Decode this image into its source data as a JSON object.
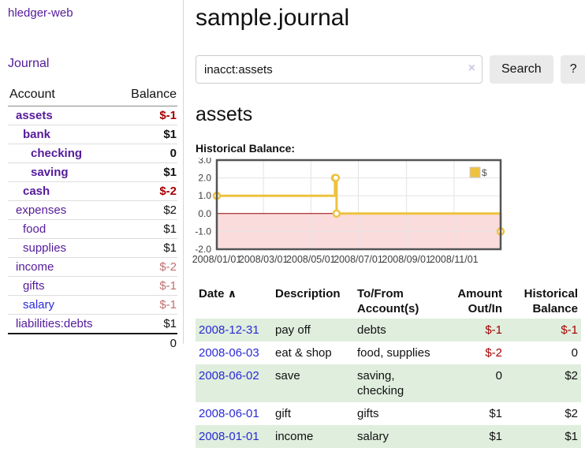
{
  "app": {
    "brand": "hledger-web"
  },
  "sidebar": {
    "nav": {
      "journal_label": "Journal"
    },
    "accounts_table": {
      "headers": {
        "account": "Account",
        "balance": "Balance"
      },
      "rows": [
        {
          "account": "assets",
          "balance": "$-1",
          "link_class": "depth0 emph",
          "balance_class": "emph neg"
        },
        {
          "account": "bank",
          "balance": "$1",
          "link_class": "depth1 emph",
          "balance_class": "emph"
        },
        {
          "account": "checking",
          "balance": "0",
          "link_class": "depth2 emph",
          "balance_class": "emph"
        },
        {
          "account": "saving",
          "balance": "$1",
          "link_class": "depth2 emph",
          "balance_class": "emph"
        },
        {
          "account": "cash",
          "balance": "$-2",
          "link_class": "depth1 emph",
          "balance_class": "emph neg"
        },
        {
          "account": "expenses",
          "balance": "$2",
          "link_class": "depth0",
          "balance_class": ""
        },
        {
          "account": "food",
          "balance": "$1",
          "link_class": "depth1",
          "balance_class": ""
        },
        {
          "account": "supplies",
          "balance": "$1",
          "link_class": "depth1",
          "balance_class": ""
        },
        {
          "account": "income",
          "balance": "$-2",
          "link_class": "depth0",
          "balance_class": "soft"
        },
        {
          "account": "gifts",
          "balance": "$-1",
          "link_class": "depth1",
          "balance_class": "soft"
        },
        {
          "account": "salary",
          "balance": "$-1",
          "link_class": "depth1 blue",
          "balance_class": "soft"
        },
        {
          "account": "liabilities:debts",
          "balance": "$1",
          "link_class": "depth0",
          "balance_class": ""
        }
      ],
      "total": "0"
    }
  },
  "main": {
    "title": "sample.journal",
    "search": {
      "value": "inacct:assets",
      "clear_icon": "×",
      "button_label": "Search",
      "help_label": "?"
    },
    "account_heading": "assets",
    "chart_label": "Historical Balance:",
    "register": {
      "headers": [
        "Date",
        "Description",
        "To/From\nAccount(s)",
        "Amount\nOut/In",
        "Historical\nBalance"
      ],
      "sort_indicator": "∧",
      "rows": [
        {
          "date": "2008-12-31",
          "description": "pay off",
          "accounts": "debts",
          "amount": "$-1",
          "balance": "$-1",
          "amount_class": "neg",
          "balance_class": "neg"
        },
        {
          "date": "2008-06-03",
          "description": "eat & shop",
          "accounts": "food, supplies",
          "amount": "$-2",
          "balance": "0",
          "amount_class": "neg",
          "balance_class": ""
        },
        {
          "date": "2008-06-02",
          "description": "save",
          "accounts": "saving, checking",
          "amount": "0",
          "balance": "$2",
          "amount_class": "",
          "balance_class": ""
        },
        {
          "date": "2008-06-01",
          "description": "gift",
          "accounts": "gifts",
          "amount": "$1",
          "balance": "$2",
          "amount_class": "",
          "balance_class": ""
        },
        {
          "date": "2008-01-01",
          "description": "income",
          "accounts": "salary",
          "amount": "$1",
          "balance": "$1",
          "amount_class": "",
          "balance_class": ""
        }
      ]
    }
  },
  "chart_data": {
    "type": "line",
    "title": "Historical Balance:",
    "series": [
      {
        "name": "$",
        "color": "#edc240",
        "style": "step",
        "points": [
          {
            "date": "2008-01-01",
            "value": 1
          },
          {
            "date": "2008-06-01",
            "value": 2
          },
          {
            "date": "2008-06-02",
            "value": 2
          },
          {
            "date": "2008-06-03",
            "value": 0
          },
          {
            "date": "2008-12-31",
            "value": -1
          }
        ]
      }
    ],
    "xlim": [
      "2008-01-01",
      "2008-12-31"
    ],
    "ylim": [
      -2,
      3
    ],
    "yticks": [
      3,
      2,
      1,
      0,
      -1,
      -2
    ],
    "ytick_labels": [
      "3.0",
      "2.0",
      "1.0",
      "0.0",
      "-1.0",
      "-2.0"
    ],
    "xticks": [
      "2008-01-01",
      "2008-03-01",
      "2008-05-01",
      "2008-07-01",
      "2008-09-01",
      "2008-11-01"
    ],
    "xtick_labels": [
      "2008/01/01",
      "2008/03/01",
      "2008/05/01",
      "2008/07/01",
      "2008/09/01",
      "2008/11/01"
    ],
    "grid": true,
    "legend_position": "top-right",
    "negative_region_color": "#fbdcdc",
    "zero_line_color": "#990000",
    "grid_color": "#e3e3e3",
    "border_color": "#545454"
  }
}
